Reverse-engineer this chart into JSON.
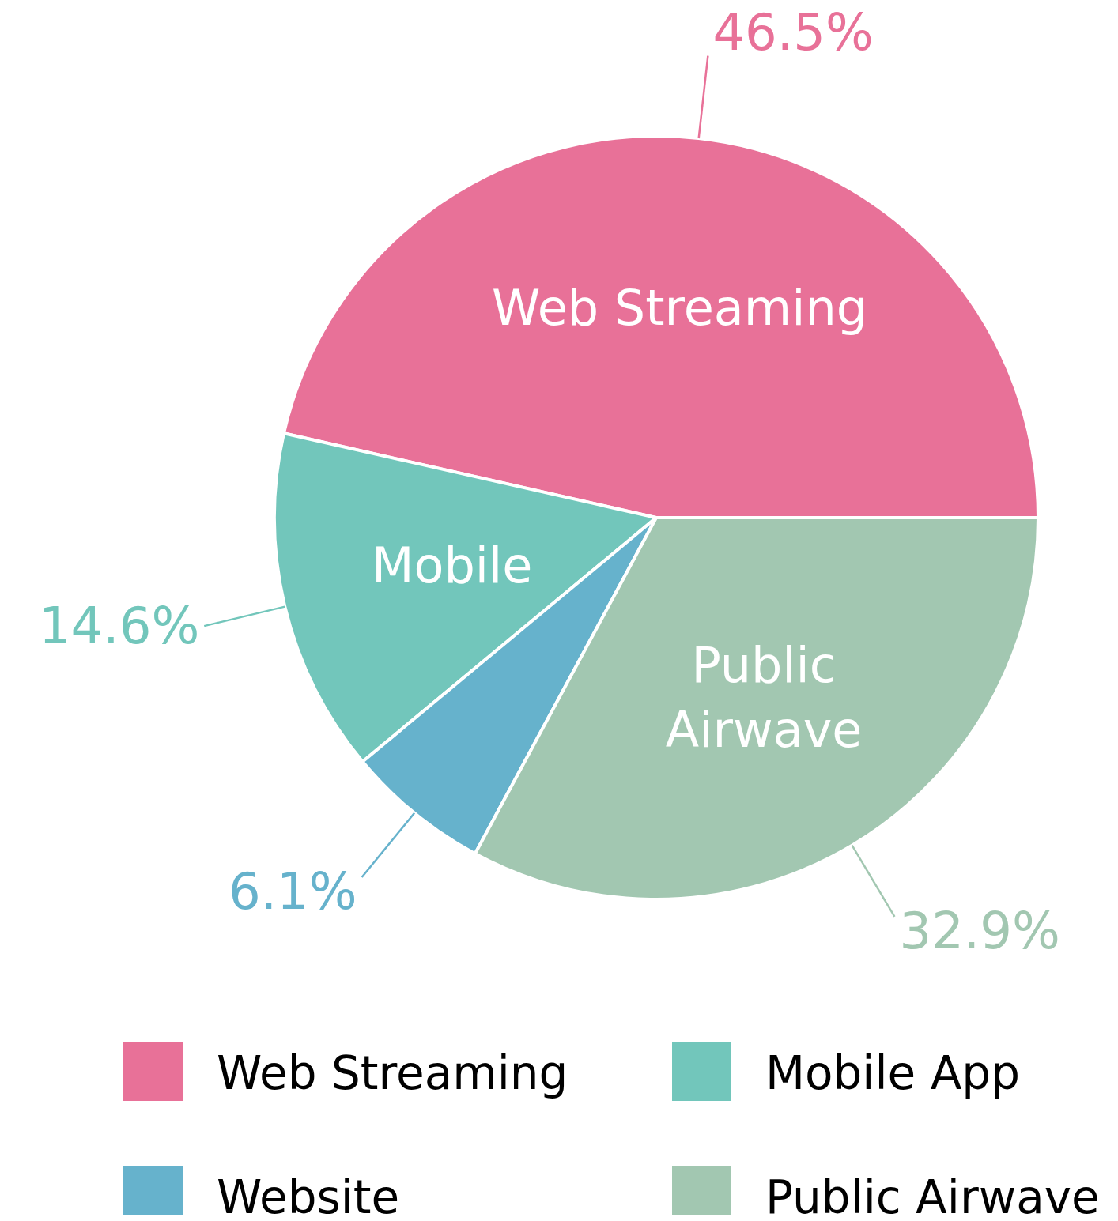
{
  "chart_data": {
    "type": "pie",
    "categories": [
      "Web Streaming",
      "Mobile App",
      "Website",
      "Public Airwave"
    ],
    "values": [
      46.5,
      14.6,
      6.1,
      32.9
    ],
    "colors": [
      "#e87198",
      "#72c6bb",
      "#66b2cc",
      "#a2c7b1"
    ],
    "value_labels": [
      "46.5%",
      "14.6%",
      "6.1%",
      "32.9%"
    ],
    "annotations": [
      {
        "text": "Web Streaming",
        "x": "Web Streaming"
      },
      {
        "text": "Mobile",
        "x": "Mobile App"
      },
      {
        "text": "Public Airwave",
        "x": "Public Airwave"
      }
    ],
    "legend": "bottom"
  }
}
